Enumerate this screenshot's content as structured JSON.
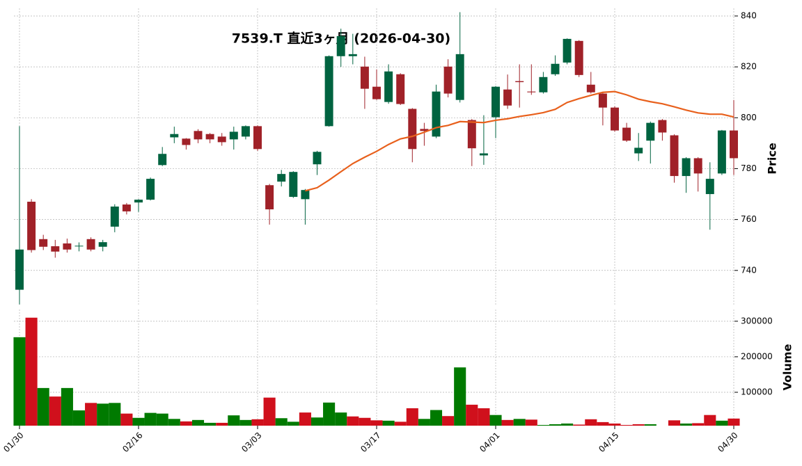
{
  "chart_data": [
    {
      "type": "candlestick",
      "title": "7539.T  直近3ヶ月 (2026-04-30)",
      "ylabel": "Price",
      "categories": [
        "01/30",
        null,
        null,
        null,
        null,
        null,
        null,
        null,
        null,
        null,
        "02/16",
        null,
        null,
        null,
        null,
        null,
        null,
        null,
        null,
        null,
        "03/03",
        null,
        null,
        null,
        null,
        null,
        null,
        null,
        null,
        null,
        "03/17",
        null,
        null,
        null,
        null,
        null,
        null,
        null,
        null,
        null,
        "04/01",
        null,
        null,
        null,
        null,
        null,
        null,
        null,
        null,
        null,
        "04/15",
        null,
        null,
        null,
        null,
        null,
        null,
        null,
        null,
        null,
        "04/30"
      ],
      "open": [
        732.4,
        767,
        752.3,
        749.5,
        750.6,
        749.7,
        752.3,
        749.3,
        757.2,
        765.9,
        766.7,
        767.8,
        781.4,
        792.3,
        791.8,
        794.8,
        793.6,
        792.6,
        791.5,
        792.6,
        796.7,
        773.5,
        774.9,
        768.9,
        768,
        781.7,
        796.7,
        824.2,
        824.2,
        820.1,
        812.2,
        806.2,
        817.1,
        803.5,
        795.6,
        792.6,
        820.1,
        807,
        799.1,
        785.2,
        800.2,
        811.1,
        814.4,
        810.3,
        810,
        817.1,
        821.7,
        830.2,
        813,
        809.5,
        804,
        796.1,
        786,
        791,
        799.1,
        793.1,
        777.1,
        784.1,
        770,
        778.1,
        795
      ],
      "high": [
        796.7,
        768,
        754,
        752,
        752.5,
        751,
        753,
        752,
        766,
        766.5,
        768,
        776.5,
        788.5,
        796.5,
        792,
        795.5,
        794,
        794,
        796.5,
        797,
        797,
        774,
        779.5,
        779,
        772,
        787,
        824.5,
        835,
        833,
        824,
        819,
        821,
        817.5,
        803.8,
        798,
        813,
        823,
        841.5,
        799.5,
        801,
        812.5,
        817,
        821,
        821,
        818,
        824.5,
        831.2,
        830.5,
        818,
        810,
        804.5,
        798,
        794,
        798.5,
        799.5,
        793.5,
        784.5,
        784.5,
        782.5,
        795.2,
        807
      ],
      "low": [
        726.6,
        747,
        748,
        745,
        747,
        747.5,
        747.5,
        747.5,
        755,
        762,
        763,
        767.5,
        781,
        790,
        787.5,
        790,
        790,
        789,
        787.5,
        791.5,
        787,
        758,
        773,
        768.5,
        758,
        777.5,
        796.5,
        820,
        821,
        803.5,
        807,
        805.5,
        805,
        782.5,
        789,
        792,
        808,
        806,
        781,
        781.5,
        792,
        803.5,
        804,
        809,
        809.5,
        816.5,
        821,
        816,
        809.5,
        797,
        794.5,
        790.5,
        783,
        782,
        791,
        774.5,
        770.5,
        771,
        756,
        777.5,
        777.5
      ],
      "close": [
        748.2,
        748,
        749.3,
        747.4,
        748.2,
        749.7,
        748.2,
        751.1,
        765.1,
        763.2,
        767.8,
        776,
        785.8,
        793.6,
        789.3,
        791.5,
        791.5,
        790.4,
        794.5,
        796.7,
        787.7,
        764,
        777.9,
        778.7,
        771.6,
        786.6,
        824.2,
        832.1,
        825,
        811.4,
        807.3,
        818.2,
        805.4,
        787.7,
        794.8,
        810.3,
        809.5,
        825,
        788,
        786,
        812.2,
        804.8,
        814,
        810,
        816,
        821.2,
        831,
        816.8,
        810,
        804,
        795,
        791,
        788.2,
        798,
        794.2,
        777.1,
        784.1,
        778.1,
        776,
        795,
        784.1
      ],
      "up_color": "#006340",
      "down_color": "#a02128",
      "mav": {
        "color": "#e8601c",
        "values": [
          null,
          null,
          null,
          null,
          null,
          null,
          null,
          null,
          null,
          null,
          null,
          null,
          null,
          null,
          null,
          null,
          null,
          null,
          null,
          null,
          null,
          null,
          null,
          null,
          771.3,
          772.5,
          775.5,
          778.8,
          782,
          784.5,
          786.8,
          789.5,
          791.7,
          792.7,
          794.3,
          796.1,
          797,
          798.5,
          798.3,
          798.1,
          799,
          799.6,
          800.5,
          801.2,
          802,
          803.3,
          806,
          807.5,
          808.8,
          810,
          810.3,
          809,
          807.3,
          806.3,
          805.5,
          804.3,
          803,
          801.9,
          801.4,
          801.4,
          800.3
        ]
      },
      "ylim": [
        726,
        843
      ],
      "yticks": [
        740,
        760,
        780,
        800,
        820,
        840
      ],
      "grid": true
    },
    {
      "type": "bar",
      "ylabel": "Volume",
      "values": [
        255000,
        310000,
        112000,
        88000,
        112000,
        49000,
        70000,
        68000,
        70000,
        40000,
        28000,
        42000,
        40000,
        25000,
        18000,
        22000,
        14000,
        14000,
        35000,
        22000,
        24000,
        85000,
        27000,
        17000,
        43000,
        29000,
        71000,
        43000,
        32000,
        28000,
        21000,
        20000,
        17000,
        55000,
        25000,
        50000,
        33000,
        170000,
        65000,
        55000,
        36000,
        22000,
        25000,
        23000,
        8000,
        10000,
        12000,
        9000,
        24000,
        16000,
        12000,
        8000,
        10000,
        10000,
        5000,
        21000,
        12000,
        13000,
        36000,
        20000,
        26000
      ],
      "up_color": "#007a00",
      "down_color": "#d0101c",
      "ylim": [
        6000,
        333000
      ],
      "yticks": [
        100000,
        200000,
        300000
      ],
      "grid": true
    }
  ]
}
